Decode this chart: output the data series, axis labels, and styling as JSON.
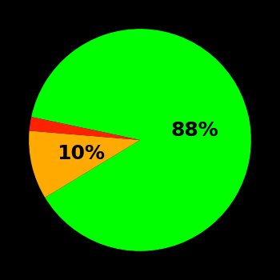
{
  "values": [
    88,
    10,
    2
  ],
  "colors": [
    "#00ff00",
    "#ffaa00",
    "#ff2200"
  ],
  "labels": [
    "88%",
    "10%",
    ""
  ],
  "background_color": "#000000",
  "text_color": "#000000",
  "font_size": 18,
  "font_weight": "bold",
  "startangle": 168,
  "figsize": [
    3.5,
    3.5
  ],
  "dpi": 100
}
